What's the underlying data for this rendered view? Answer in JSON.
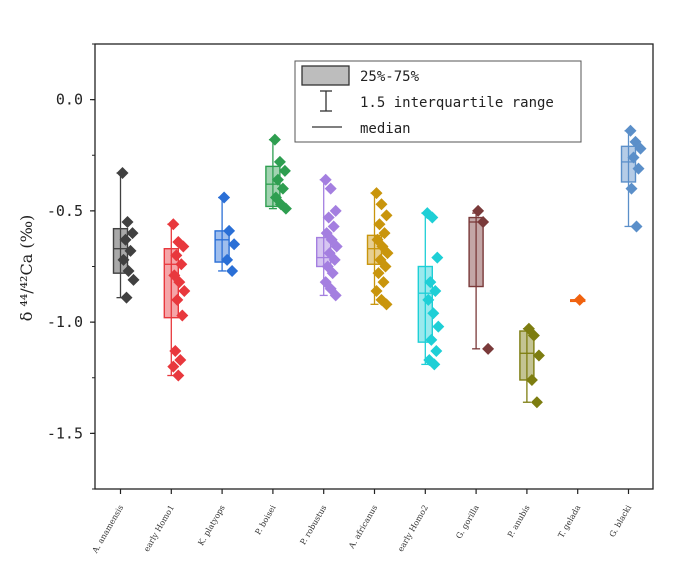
{
  "chart_data": {
    "type": "box",
    "ylabel": "δ ⁴⁴/⁴²Ca (‰)",
    "ylim": [
      -1.75,
      0.25
    ],
    "yticks": [
      0.0,
      -0.5,
      -1.0,
      -1.5
    ],
    "ytick_labels": [
      "0.0",
      "-0.5",
      "-1.0",
      "-1.5"
    ],
    "grid": false,
    "legend": {
      "placement": "top-center",
      "entries": [
        "25%-75%",
        "1.5 interquartile range",
        "median"
      ]
    },
    "categories": [
      "A. anamensis",
      "early Homo1",
      "K. platyops",
      "P. boisei",
      "P. robustus",
      "A. africanus",
      "early Homo2",
      "G. gorilla",
      "P. anubis",
      "T. gelada",
      "G. blacki"
    ],
    "series": [
      {
        "name": "A. anamensis",
        "color": "#404040",
        "q1": -0.78,
        "q3": -0.58,
        "median": -0.67,
        "whisker_low": -0.89,
        "whisker_high": -0.33,
        "points": [
          -0.33,
          -0.55,
          -0.6,
          -0.63,
          -0.68,
          -0.72,
          -0.77,
          -0.81,
          -0.89
        ]
      },
      {
        "name": "early Homo1",
        "color": "#e8383d",
        "q1": -0.98,
        "q3": -0.67,
        "median": -0.74,
        "whisker_low": -1.24,
        "whisker_high": -0.56,
        "points": [
          -0.56,
          -0.64,
          -0.66,
          -0.7,
          -0.74,
          -0.79,
          -0.82,
          -0.86,
          -0.9,
          -0.97,
          -1.13,
          -1.17,
          -1.2,
          -1.24
        ]
      },
      {
        "name": "K. platyops",
        "color": "#2a6fd6",
        "q1": -0.73,
        "q3": -0.59,
        "median": -0.63,
        "whisker_low": -0.77,
        "whisker_high": -0.44,
        "points": [
          -0.44,
          -0.59,
          -0.65,
          -0.72,
          -0.77
        ]
      },
      {
        "name": "P. boisei",
        "color": "#2e9e50",
        "q1": -0.48,
        "q3": -0.3,
        "median": -0.38,
        "whisker_low": -0.49,
        "whisker_high": -0.18,
        "points": [
          -0.18,
          -0.28,
          -0.32,
          -0.36,
          -0.4,
          -0.44,
          -0.47,
          -0.49
        ]
      },
      {
        "name": "P. robustus",
        "color": "#a47fe0",
        "q1": -0.75,
        "q3": -0.62,
        "median": -0.71,
        "whisker_low": -0.88,
        "whisker_high": -0.36,
        "points": [
          -0.36,
          -0.4,
          -0.5,
          -0.53,
          -0.57,
          -0.6,
          -0.63,
          -0.66,
          -0.69,
          -0.72,
          -0.75,
          -0.78,
          -0.82,
          -0.85,
          -0.88
        ]
      },
      {
        "name": "A. africanus",
        "color": "#c9950c",
        "q1": -0.74,
        "q3": -0.61,
        "median": -0.67,
        "whisker_low": -0.92,
        "whisker_high": -0.42,
        "points": [
          -0.42,
          -0.47,
          -0.52,
          -0.56,
          -0.6,
          -0.63,
          -0.66,
          -0.69,
          -0.72,
          -0.75,
          -0.78,
          -0.82,
          -0.86,
          -0.9,
          -0.92
        ]
      },
      {
        "name": "early Homo2",
        "color": "#1ecfd6",
        "q1": -1.09,
        "q3": -0.75,
        "median": -0.87,
        "whisker_low": -1.19,
        "whisker_high": -0.51,
        "points": [
          -0.51,
          -0.53,
          -0.71,
          -0.82,
          -0.86,
          -0.9,
          -0.96,
          -1.02,
          -1.08,
          -1.13,
          -1.17,
          -1.19
        ]
      },
      {
        "name": "G. gorilla",
        "color": "#7a3a3a",
        "q1": -0.84,
        "q3": -0.53,
        "median": -0.55,
        "whisker_low": -1.12,
        "whisker_high": -0.51,
        "points": [
          -0.5,
          -0.55,
          -1.12
        ]
      },
      {
        "name": "P. anubis",
        "color": "#7d7d10",
        "q1": -1.26,
        "q3": -1.04,
        "median": -1.14,
        "whisker_low": -1.36,
        "whisker_high": -1.03,
        "points": [
          -1.03,
          -1.06,
          -1.15,
          -1.26,
          -1.36
        ]
      },
      {
        "name": "T. gelada",
        "color": "#f0620f",
        "q1": -0.9,
        "q3": -0.9,
        "median": -0.9,
        "whisker_low": -0.9,
        "whisker_high": -0.9,
        "points": [
          -0.9
        ]
      },
      {
        "name": "G. blacki",
        "color": "#5b8fc9",
        "q1": -0.37,
        "q3": -0.21,
        "median": -0.28,
        "whisker_low": -0.57,
        "whisker_high": -0.14,
        "points": [
          -0.14,
          -0.19,
          -0.22,
          -0.26,
          -0.31,
          -0.4,
          -0.57
        ]
      }
    ]
  }
}
